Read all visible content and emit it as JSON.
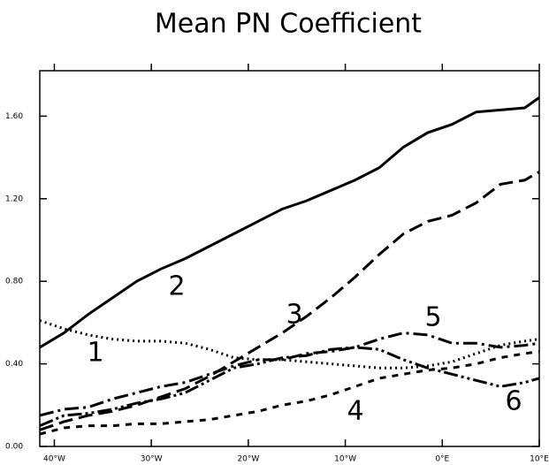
{
  "chart_data": {
    "type": "line",
    "title": "Mean PN Coefficient",
    "x": [
      -41.5,
      -39,
      -36.5,
      -34,
      -31.5,
      -29,
      -26.5,
      -24,
      -21.5,
      -19,
      -16.5,
      -14,
      -11.5,
      -9,
      -6.5,
      -4,
      -1.5,
      1,
      3.5,
      6,
      8.5,
      10
    ],
    "xlim": [
      -41.5,
      10
    ],
    "xticks": [
      {
        "value": -40,
        "label": "40°W"
      },
      {
        "value": -30,
        "label": "30°W"
      },
      {
        "value": -20,
        "label": "20°W"
      },
      {
        "value": -10,
        "label": "10°W"
      },
      {
        "value": 0,
        "label": "0°E"
      },
      {
        "value": 10,
        "label": "10°E"
      }
    ],
    "ylim": [
      0,
      1.82
    ],
    "yticks": [
      {
        "value": 0,
        "label": "0.00"
      },
      {
        "value": 0.4,
        "label": "0.40"
      },
      {
        "value": 0.8,
        "label": "0.80"
      },
      {
        "value": 1.2,
        "label": "1.20"
      },
      {
        "value": 1.6,
        "label": "1.60"
      }
    ],
    "series": [
      {
        "name": "1",
        "color": "#000000",
        "values": [
          0.61,
          0.57,
          0.54,
          0.52,
          0.51,
          0.51,
          0.5,
          0.47,
          0.43,
          0.42,
          0.42,
          0.41,
          0.4,
          0.39,
          0.38,
          0.38,
          0.39,
          0.41,
          0.45,
          0.49,
          0.51,
          0.52
        ]
      },
      {
        "name": "2",
        "color": "#000000",
        "values": [
          0.48,
          0.55,
          0.64,
          0.72,
          0.8,
          0.86,
          0.91,
          0.97,
          1.03,
          1.09,
          1.15,
          1.19,
          1.24,
          1.29,
          1.35,
          1.45,
          1.52,
          1.56,
          1.62,
          1.63,
          1.64,
          1.69
        ]
      },
      {
        "name": "3",
        "color": "#000000",
        "values": [
          0.08,
          0.12,
          0.15,
          0.17,
          0.2,
          0.24,
          0.28,
          0.34,
          0.41,
          0.48,
          0.55,
          0.63,
          0.72,
          0.82,
          0.93,
          1.03,
          1.09,
          1.12,
          1.18,
          1.27,
          1.29,
          1.33
        ]
      },
      {
        "name": "4",
        "color": "#000000",
        "values": [
          0.06,
          0.09,
          0.1,
          0.1,
          0.11,
          0.11,
          0.12,
          0.13,
          0.15,
          0.17,
          0.2,
          0.22,
          0.25,
          0.29,
          0.33,
          0.35,
          0.37,
          0.38,
          0.4,
          0.43,
          0.45,
          0.46
        ]
      },
      {
        "name": "5",
        "color": "#000000",
        "values": [
          0.15,
          0.18,
          0.19,
          0.23,
          0.26,
          0.29,
          0.31,
          0.35,
          0.39,
          0.42,
          0.42,
          0.45,
          0.46,
          0.48,
          0.52,
          0.55,
          0.54,
          0.5,
          0.5,
          0.48,
          0.49,
          0.5
        ]
      },
      {
        "name": "6",
        "color": "#000000",
        "values": [
          0.1,
          0.15,
          0.16,
          0.18,
          0.21,
          0.23,
          0.26,
          0.32,
          0.38,
          0.4,
          0.43,
          0.44,
          0.47,
          0.48,
          0.47,
          0.42,
          0.38,
          0.35,
          0.32,
          0.29,
          0.31,
          0.33
        ]
      }
    ]
  }
}
